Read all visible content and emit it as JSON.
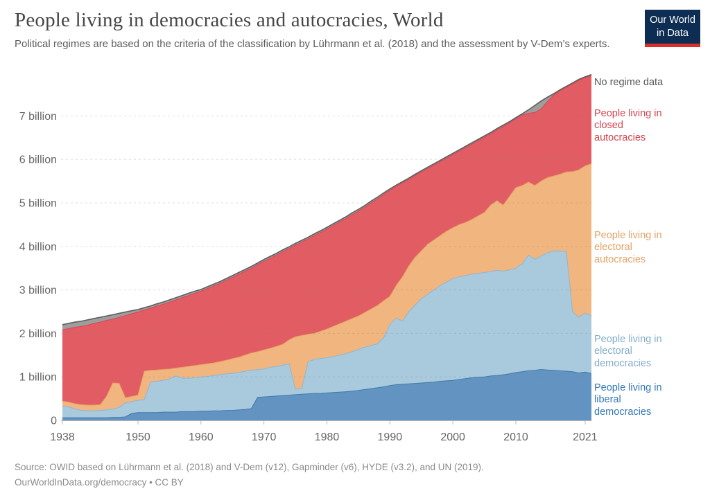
{
  "header": {
    "title": "People living in democracies and autocracies, World",
    "subtitle": "Political regimes are based on the criteria of the classification by Lührmann et al. (2018) and the assessment by V-Dem’s experts."
  },
  "logo": {
    "line1": "Our World",
    "line2": "in Data",
    "bg_color": "#0d2e52",
    "bar_color": "#d9302c"
  },
  "footer": {
    "source": "Source: OWID based on Lührmann et al. (2018) and V-Dem (v12), Gapminder (v6), HYDE (v3.2), and UN (2019).",
    "link": "OurWorldInData.org/democracy • CC BY"
  },
  "chart_data": {
    "type": "area",
    "stacked": true,
    "title": "People living in democracies and autocracies, World",
    "unit": "billion people",
    "xlabel": "",
    "ylabel": "",
    "ylim": [
      0,
      7.95
    ],
    "grid": "dashed-horizontal",
    "legend_position": "right-edge-labels",
    "x": [
      1938,
      1939,
      1940,
      1941,
      1942,
      1943,
      1944,
      1945,
      1946,
      1947,
      1948,
      1949,
      1950,
      1951,
      1952,
      1953,
      1954,
      1955,
      1956,
      1957,
      1958,
      1959,
      1960,
      1961,
      1962,
      1963,
      1964,
      1965,
      1966,
      1967,
      1968,
      1969,
      1970,
      1971,
      1972,
      1973,
      1974,
      1975,
      1976,
      1977,
      1978,
      1979,
      1980,
      1981,
      1982,
      1983,
      1984,
      1985,
      1986,
      1987,
      1988,
      1989,
      1990,
      1991,
      1992,
      1993,
      1994,
      1995,
      1996,
      1997,
      1998,
      1999,
      2000,
      2001,
      2002,
      2003,
      2004,
      2005,
      2006,
      2007,
      2008,
      2009,
      2010,
      2011,
      2012,
      2013,
      2014,
      2015,
      2016,
      2017,
      2018,
      2019,
      2020,
      2021,
      2022
    ],
    "x_ticks": [
      {
        "value": 1938,
        "label": "1938"
      },
      {
        "value": 1950,
        "label": "1950"
      },
      {
        "value": 1960,
        "label": "1960"
      },
      {
        "value": 1970,
        "label": "1970"
      },
      {
        "value": 1980,
        "label": "1980"
      },
      {
        "value": 1990,
        "label": "1990"
      },
      {
        "value": 2000,
        "label": "2000"
      },
      {
        "value": 2010,
        "label": "2010"
      },
      {
        "value": 2021,
        "label": "2021"
      }
    ],
    "y_ticks": [
      {
        "value": 0,
        "label": "0"
      },
      {
        "value": 1,
        "label": "1 billion"
      },
      {
        "value": 2,
        "label": "2 billion"
      },
      {
        "value": 3,
        "label": "3 billion"
      },
      {
        "value": 4,
        "label": "4 billion"
      },
      {
        "value": 5,
        "label": "5 billion"
      },
      {
        "value": 6,
        "label": "6 billion"
      },
      {
        "value": 7,
        "label": "7 billion"
      }
    ],
    "series": [
      {
        "key": "liberal_democracies",
        "label": "People living in\nliberal\ndemocracies",
        "label_color": "#3177b6",
        "fill": "#6393c1",
        "line": "#4179ad",
        "values": [
          0.06,
          0.06,
          0.06,
          0.06,
          0.06,
          0.06,
          0.06,
          0.06,
          0.07,
          0.07,
          0.08,
          0.16,
          0.18,
          0.18,
          0.18,
          0.18,
          0.19,
          0.19,
          0.19,
          0.2,
          0.2,
          0.2,
          0.21,
          0.21,
          0.22,
          0.22,
          0.23,
          0.23,
          0.24,
          0.25,
          0.27,
          0.53,
          0.54,
          0.55,
          0.56,
          0.57,
          0.58,
          0.59,
          0.6,
          0.61,
          0.62,
          0.62,
          0.63,
          0.64,
          0.65,
          0.66,
          0.67,
          0.69,
          0.71,
          0.73,
          0.75,
          0.77,
          0.8,
          0.82,
          0.83,
          0.84,
          0.85,
          0.86,
          0.87,
          0.88,
          0.9,
          0.91,
          0.92,
          0.94,
          0.96,
          0.98,
          0.99,
          1.0,
          1.02,
          1.03,
          1.05,
          1.07,
          1.1,
          1.12,
          1.14,
          1.15,
          1.17,
          1.16,
          1.15,
          1.14,
          1.13,
          1.12,
          1.09,
          1.11,
          1.08
        ]
      },
      {
        "key": "electoral_democracies",
        "label": "People living in\nelectoral\ndemocracies",
        "label_color": "#82adcb",
        "fill": "#a9c9dc",
        "line": "#8fb7d1",
        "values": [
          0.27,
          0.25,
          0.2,
          0.17,
          0.16,
          0.16,
          0.17,
          0.18,
          0.19,
          0.23,
          0.32,
          0.27,
          0.28,
          0.3,
          0.7,
          0.72,
          0.73,
          0.76,
          0.83,
          0.77,
          0.77,
          0.78,
          0.79,
          0.8,
          0.81,
          0.83,
          0.84,
          0.85,
          0.86,
          0.88,
          0.88,
          0.64,
          0.64,
          0.67,
          0.68,
          0.7,
          0.72,
          0.13,
          0.13,
          0.74,
          0.78,
          0.8,
          0.81,
          0.83,
          0.85,
          0.87,
          0.91,
          0.94,
          0.97,
          0.99,
          1.01,
          1.13,
          1.4,
          1.53,
          1.45,
          1.66,
          1.8,
          1.94,
          2.03,
          2.12,
          2.2,
          2.27,
          2.34,
          2.36,
          2.37,
          2.38,
          2.39,
          2.4,
          2.4,
          2.42,
          2.38,
          2.39,
          2.4,
          2.48,
          2.66,
          2.55,
          2.61,
          2.69,
          2.75,
          2.75,
          2.76,
          1.38,
          1.28,
          1.36,
          1.32
        ]
      },
      {
        "key": "electoral_autocracies",
        "label": "People living in\nelectoral\nautocracies",
        "label_color": "#e2a266",
        "fill": "#f1b57f",
        "line": "#e5a25f",
        "values": [
          0.11,
          0.11,
          0.12,
          0.13,
          0.13,
          0.13,
          0.13,
          0.31,
          0.6,
          0.55,
          0.12,
          0.12,
          0.12,
          0.65,
          0.27,
          0.26,
          0.25,
          0.23,
          0.18,
          0.25,
          0.27,
          0.28,
          0.28,
          0.29,
          0.29,
          0.3,
          0.31,
          0.34,
          0.35,
          0.37,
          0.4,
          0.41,
          0.44,
          0.44,
          0.46,
          0.48,
          0.55,
          1.2,
          1.22,
          0.63,
          0.6,
          0.63,
          0.66,
          0.69,
          0.72,
          0.75,
          0.76,
          0.77,
          0.8,
          0.84,
          0.88,
          0.85,
          0.65,
          0.75,
          1.02,
          1.05,
          1.1,
          1.1,
          1.15,
          1.15,
          1.15,
          1.17,
          1.17,
          1.2,
          1.22,
          1.26,
          1.32,
          1.38,
          1.53,
          1.6,
          1.52,
          1.69,
          1.85,
          1.8,
          1.68,
          1.7,
          1.72,
          1.73,
          1.72,
          1.77,
          1.82,
          3.22,
          3.39,
          3.38,
          3.5
        ]
      },
      {
        "key": "closed_autocracies",
        "label": "People living in\nclosed\nautocracies",
        "label_color": "#d5434e",
        "fill": "#e25c64",
        "line": "#d64552",
        "values": [
          1.64,
          1.69,
          1.76,
          1.8,
          1.84,
          1.88,
          1.9,
          1.75,
          1.47,
          1.52,
          1.89,
          1.9,
          1.91,
          1.41,
          1.43,
          1.47,
          1.5,
          1.54,
          1.57,
          1.6,
          1.63,
          1.66,
          1.69,
          1.73,
          1.77,
          1.8,
          1.84,
          1.87,
          1.91,
          1.93,
          1.95,
          2.0,
          2.04,
          2.07,
          2.1,
          2.13,
          2.1,
          2.11,
          2.15,
          2.19,
          2.25,
          2.27,
          2.3,
          2.32,
          2.34,
          2.36,
          2.39,
          2.41,
          2.42,
          2.44,
          2.45,
          2.44,
          2.44,
          2.28,
          2.16,
          1.99,
          1.88,
          1.81,
          1.74,
          1.72,
          1.7,
          1.68,
          1.68,
          1.69,
          1.72,
          1.73,
          1.73,
          1.73,
          1.64,
          1.63,
          1.81,
          1.69,
          1.58,
          1.62,
          1.58,
          1.68,
          1.66,
          1.75,
          1.86,
          1.92,
          1.95,
          2.02,
          2.06,
          2.03,
          2.03
        ]
      },
      {
        "key": "no_regime_data",
        "label": "No regime data",
        "label_color": "#555555",
        "fill": "#9e9e9e",
        "line": "#616161",
        "values": [
          0.12,
          0.12,
          0.12,
          0.12,
          0.12,
          0.11,
          0.11,
          0.1,
          0.1,
          0.09,
          0.08,
          0.07,
          0.06,
          0.05,
          0.05,
          0.05,
          0.05,
          0.05,
          0.05,
          0.05,
          0.05,
          0.05,
          0.04,
          0.04,
          0.04,
          0.04,
          0.04,
          0.04,
          0.04,
          0.04,
          0.04,
          0.04,
          0.04,
          0.04,
          0.04,
          0.04,
          0.04,
          0.04,
          0.04,
          0.04,
          0.04,
          0.04,
          0.04,
          0.04,
          0.04,
          0.04,
          0.04,
          0.04,
          0.04,
          0.04,
          0.04,
          0.04,
          0.03,
          0.03,
          0.03,
          0.03,
          0.03,
          0.03,
          0.03,
          0.03,
          0.03,
          0.03,
          0.03,
          0.03,
          0.03,
          0.03,
          0.03,
          0.03,
          0.03,
          0.03,
          0.03,
          0.03,
          0.03,
          0.03,
          0.08,
          0.16,
          0.18,
          0.1,
          0.03,
          0.02,
          0.02,
          0.02,
          0.02,
          0.02,
          0.02
        ]
      }
    ]
  }
}
